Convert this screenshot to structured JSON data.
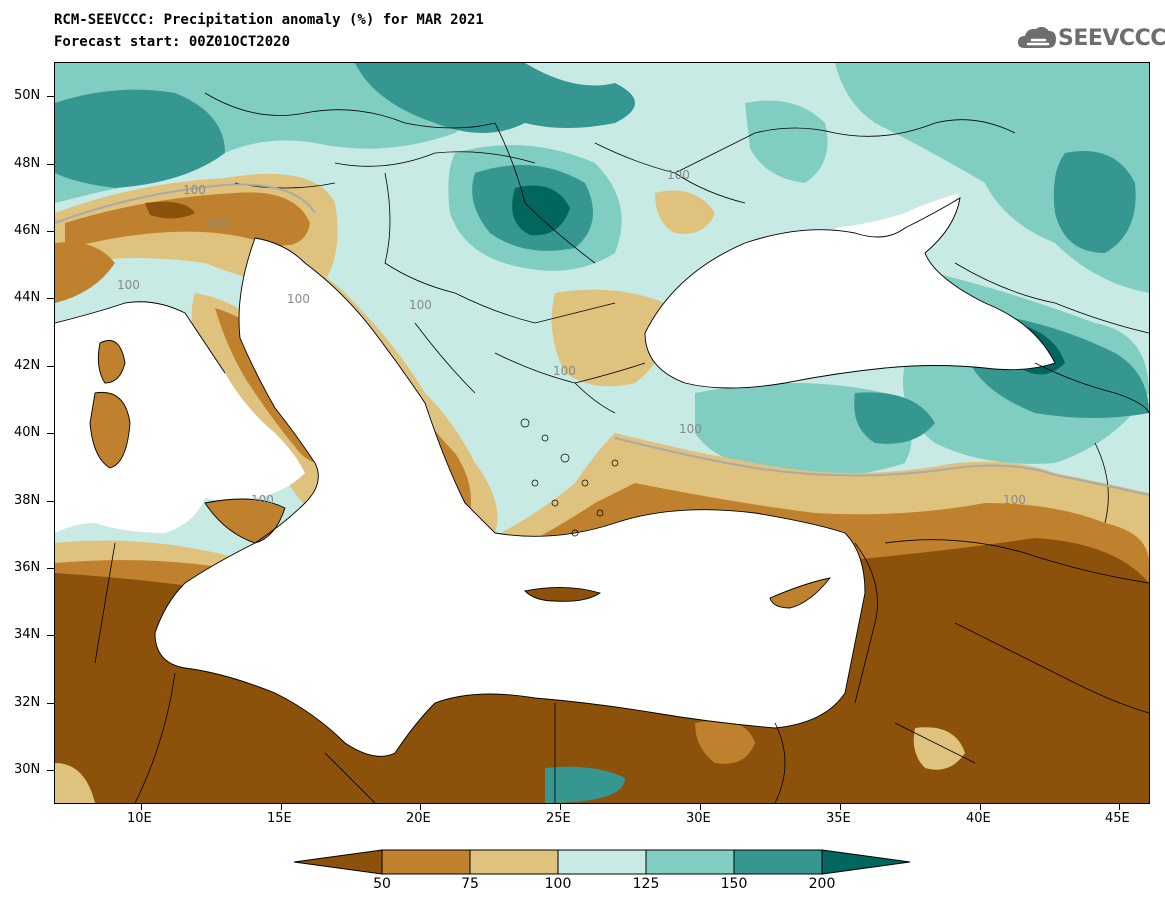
{
  "title_line1": "RCM-SEEVCCC: Precipitation anomaly (%) for MAR 2021",
  "title_line2": "Forecast start: 00Z01OCT2020",
  "logo_text": "SEEVCCC",
  "logo_icon": "cloud-icon",
  "lat_labels": [
    "50N",
    "48N",
    "46N",
    "44N",
    "42N",
    "40N",
    "38N",
    "36N",
    "34N",
    "32N",
    "30N"
  ],
  "lon_labels": [
    "10E",
    "15E",
    "20E",
    "25E",
    "30E",
    "35E",
    "40E",
    "45E"
  ],
  "contour_labels": [
    "100",
    "100",
    "100",
    "100",
    "100",
    "100",
    "100",
    "100",
    "100",
    "100"
  ],
  "colorbar": {
    "labels": [
      "50",
      "75",
      "100",
      "125",
      "150",
      "200"
    ],
    "colors": [
      "#8c510a",
      "#bf812d",
      "#dfc27d",
      "#c7eae5",
      "#80cdc1",
      "#35978f",
      "#01665e"
    ]
  },
  "colors": {
    "below50": "#8c510a",
    "range50_75": "#bf812d",
    "range75_100": "#dfc27d",
    "range100_125": "#c7eae5",
    "range125_150": "#80cdc1",
    "range150_200": "#35978f",
    "above200": "#01665e",
    "sea": "#ffffff",
    "logo": "#6e6e6e"
  }
}
